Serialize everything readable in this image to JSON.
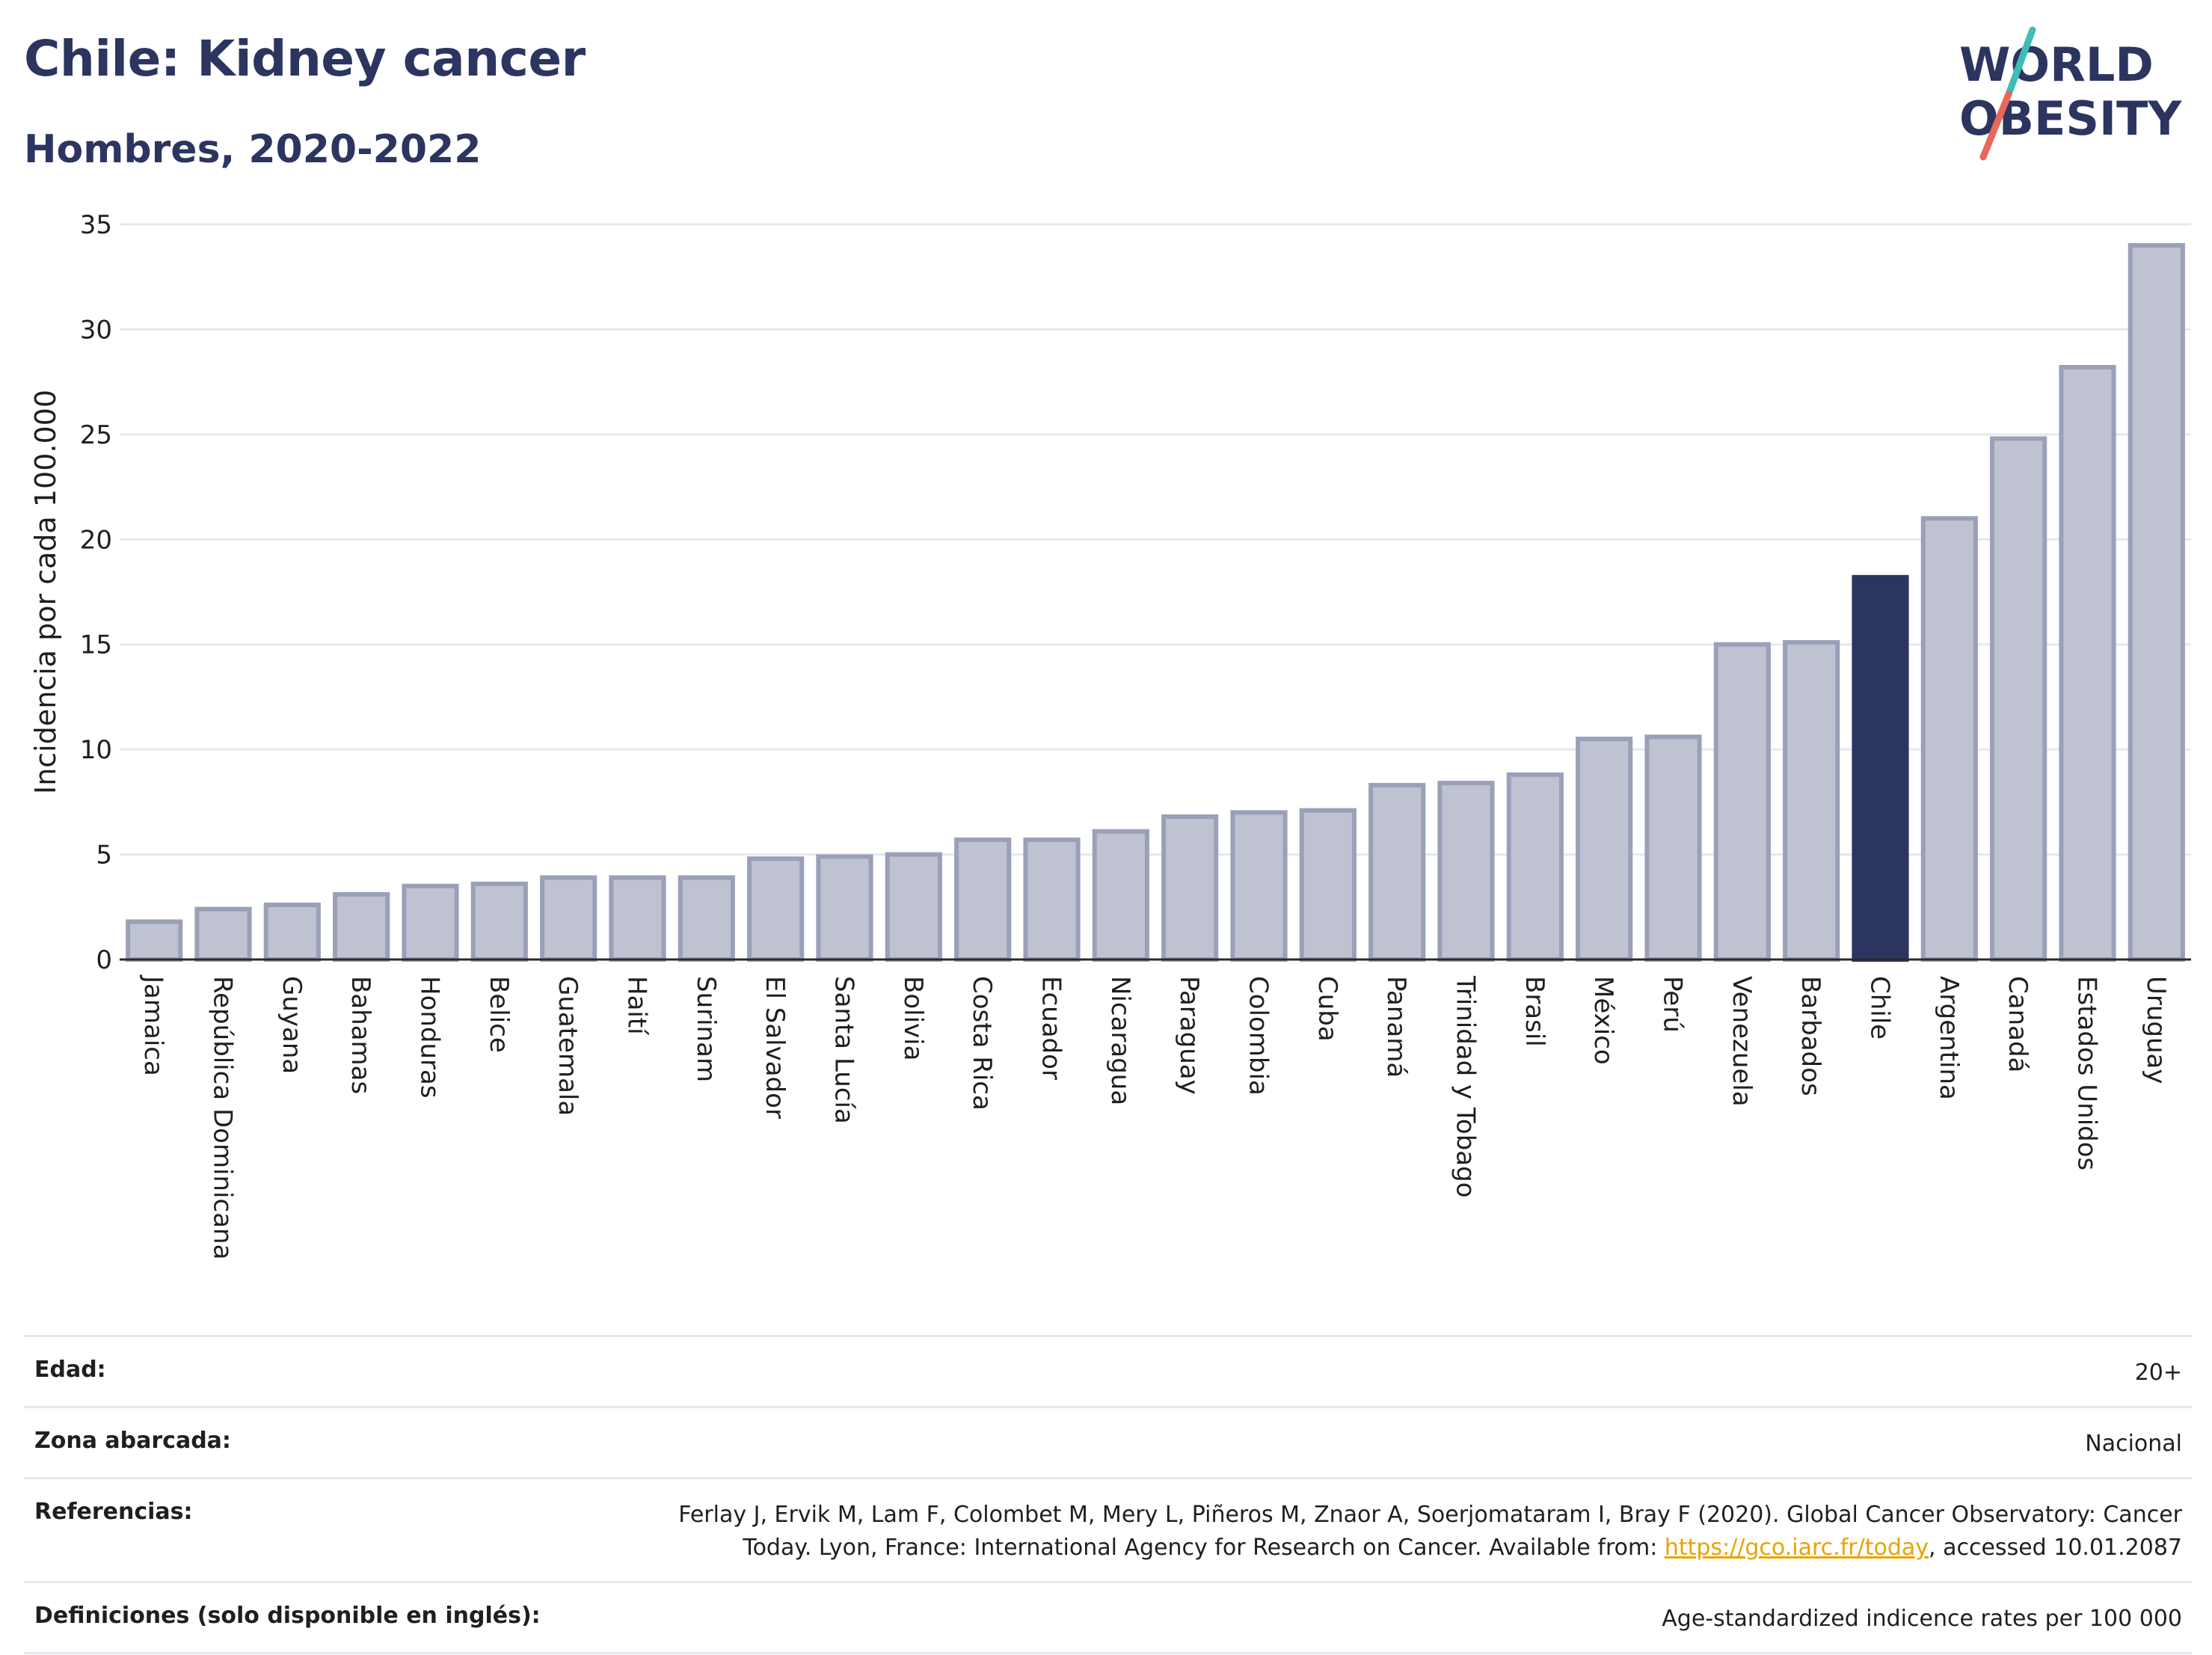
{
  "header": {
    "title": "Chile: Kidney cancer",
    "subtitle": "Hombres, 2020-2022"
  },
  "logo": {
    "line1": "WORLD",
    "line2": "OBESITY",
    "colors": {
      "text": "#2b3560",
      "slash_top": "#3dbdb5",
      "slash_bottom": "#e8685a"
    }
  },
  "colors": {
    "bar": "#bfc3d1",
    "bar_border": "#9aa0b8",
    "highlight": "#2b3560",
    "grid": "#e6e8f0"
  },
  "chart_data": {
    "type": "bar",
    "ylabel": "Incidencia por cada 100.000",
    "ylim": [
      0,
      35
    ],
    "yticks": [
      0,
      5,
      10,
      15,
      20,
      25,
      30,
      35
    ],
    "grid": true,
    "highlight": "Chile",
    "categories": [
      "Jamaica",
      "República Dominicana",
      "Guyana",
      "Bahamas",
      "Honduras",
      "Belice",
      "Guatemala",
      "Haití",
      "Surinam",
      "El Salvador",
      "Santa Lucía",
      "Bolivia",
      "Costa Rica",
      "Ecuador",
      "Nicaragua",
      "Paraguay",
      "Colombia",
      "Cuba",
      "Panamá",
      "Trinidad y Tobago",
      "Brasil",
      "México",
      "Perú",
      "Venezuela",
      "Barbados",
      "Chile",
      "Argentina",
      "Canadá",
      "Estados Unidos",
      "Uruguay"
    ],
    "values": [
      1.8,
      2.4,
      2.6,
      3.1,
      3.5,
      3.6,
      3.9,
      3.9,
      3.9,
      4.8,
      4.9,
      5.0,
      5.7,
      5.7,
      6.1,
      6.8,
      7.0,
      7.1,
      8.3,
      8.4,
      8.8,
      10.5,
      10.6,
      15.0,
      15.1,
      18.2,
      21.0,
      24.8,
      28.2,
      34.0
    ]
  },
  "info": [
    {
      "label": "Edad:",
      "value": "20+"
    },
    {
      "label": "Zona abarcada:",
      "value": "Nacional"
    },
    {
      "label": "Referencias:",
      "value_line1": "Ferlay J, Ervik M, Lam F, Colombet M, Mery L, Piñeros M, Znaor A, Soerjomataram I, Bray F (2020). Global Cancer Observatory: Cancer",
      "value_line2_pre": "Today. Lyon, France: International Agency for Research on Cancer. Available from: ",
      "link": "https://gco.iarc.fr/today",
      "value_line2_post": ", accessed 10.01.2087"
    },
    {
      "label": "Definiciones (solo disponible en inglés):",
      "value": "Age-standardized indicence rates per 100 000"
    }
  ]
}
